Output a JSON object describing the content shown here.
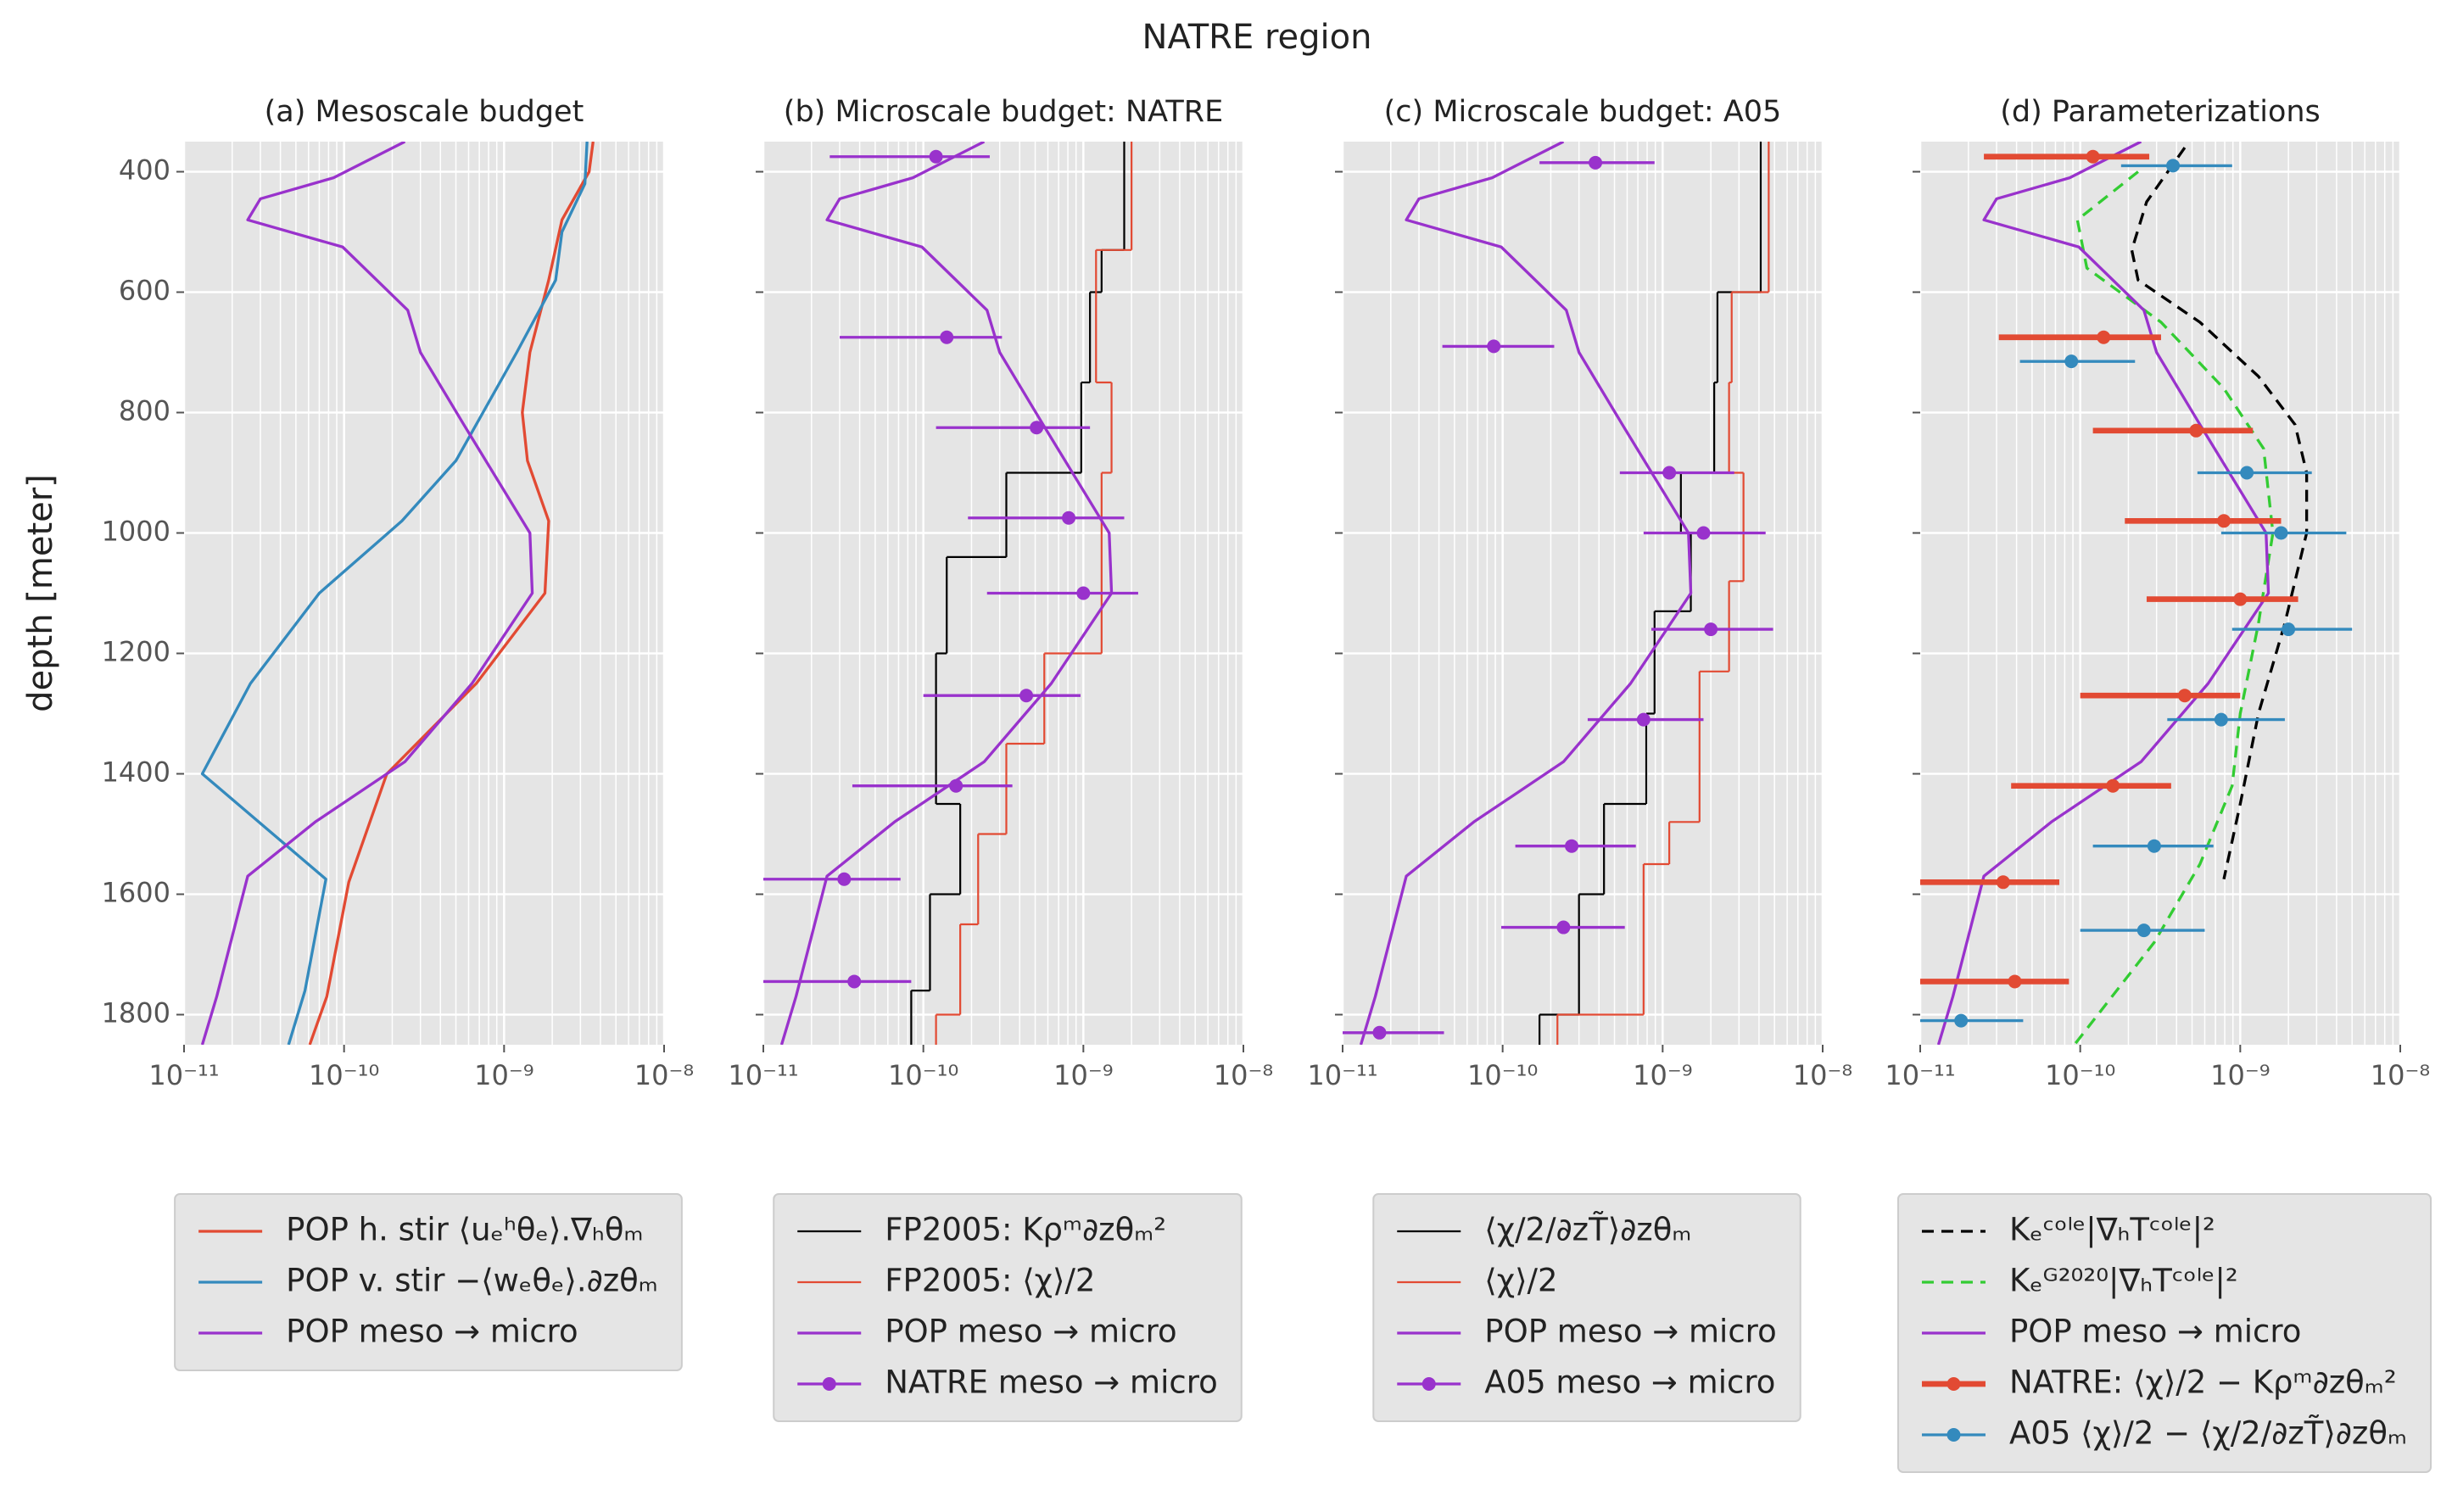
{
  "title": "NATRE region",
  "chart_data": [
    {
      "type": "line",
      "title": "(a) Mesoscale budget",
      "ylabel": "depth [meter]",
      "xscale": "log",
      "grid": true,
      "legend": "below",
      "ytick_labels": true,
      "xlim": [
        1e-11,
        1e-08
      ],
      "xticks": [
        {
          "value": 1e-11,
          "label": "10⁻¹¹"
        },
        {
          "value": 1e-10,
          "label": "10⁻¹⁰"
        },
        {
          "value": 1e-09,
          "label": "10⁻⁹"
        },
        {
          "value": 1e-08,
          "label": "10⁻⁸"
        }
      ],
      "ylim": [
        1850,
        350
      ],
      "yticks": [
        400,
        600,
        800,
        1000,
        1200,
        1400,
        1600,
        1800
      ],
      "series": [
        {
          "name": "POP h. stir ⟨uₑʰθₑ⟩.∇ₕθₘ",
          "color": "#E24A33",
          "style": "solid",
          "depth": [
            350,
            400,
            480,
            580,
            700,
            800,
            880,
            980,
            1100,
            1250,
            1400,
            1580,
            1770,
            1850
          ],
          "values": [
            3.6e-09,
            3.4e-09,
            2.3e-09,
            1.9e-09,
            1.45e-09,
            1.3e-09,
            1.4e-09,
            1.9e-09,
            1.8e-09,
            6.7e-10,
            1.85e-10,
            1.07e-10,
            7.8e-11,
            6.1e-11
          ]
        },
        {
          "name": "POP v. stir −⟨wₑθₑ⟩.∂zθₘ",
          "color": "#348ABD",
          "style": "solid",
          "depth": [
            350,
            420,
            500,
            580,
            700,
            880,
            980,
            1100,
            1250,
            1400,
            1575,
            1760,
            1850
          ],
          "values": [
            3.3e-09,
            3.2e-09,
            2.3e-09,
            2.1e-09,
            1.2e-09,
            5e-10,
            2.3e-10,
            7e-11,
            2.6e-11,
            1.3e-11,
            7.7e-11,
            5.7e-11,
            4.5e-11
          ]
        },
        {
          "name": "POP meso → micro",
          "color": "#9932CC",
          "style": "solid",
          "depth": [
            350,
            410,
            445,
            480,
            525,
            630,
            700,
            820,
            1000,
            1100,
            1250,
            1380,
            1480,
            1570,
            1770,
            1850
          ],
          "values": [
            2.4e-10,
            8.6e-11,
            3e-11,
            2.5e-11,
            9.8e-11,
            2.5e-10,
            3e-10,
            5.6e-10,
            1.45e-09,
            1.5e-09,
            6.3e-10,
            2.4e-10,
            6.6e-11,
            2.5e-11,
            1.6e-11,
            1.3e-11
          ]
        }
      ]
    },
    {
      "type": "line",
      "title": "(b) Microscale budget: NATRE",
      "xscale": "log",
      "grid": true,
      "legend": "below",
      "ytick_labels": false,
      "xlim": [
        1e-11,
        1e-08
      ],
      "xticks": [
        {
          "value": 1e-11,
          "label": "10⁻¹¹"
        },
        {
          "value": 1e-10,
          "label": "10⁻¹⁰"
        },
        {
          "value": 1e-09,
          "label": "10⁻⁹"
        },
        {
          "value": 1e-08,
          "label": "10⁻⁸"
        }
      ],
      "ylim": [
        1850,
        350
      ],
      "yticks": [
        400,
        600,
        800,
        1000,
        1200,
        1400,
        1600,
        1800
      ],
      "series": [
        {
          "name": "FP2005: Kρᵐ∂zθₘ²",
          "color": "#000000",
          "style": "step",
          "linewidth": 1,
          "depth": [
            350,
            530,
            600,
            750,
            900,
            1040,
            1200,
            1450,
            1600,
            1760,
            1850
          ],
          "values": [
            1.8e-09,
            1.3e-09,
            1.1e-09,
            9.7e-10,
            3.3e-10,
            1.4e-10,
            1.2e-10,
            1.7e-10,
            1.1e-10,
            8.4e-11
          ]
        },
        {
          "name": "FP2005: ⟨χ⟩/2",
          "color": "#E24A33",
          "style": "step",
          "linewidth": 1,
          "depth": [
            350,
            530,
            750,
            900,
            1200,
            1350,
            1500,
            1650,
            1800,
            1850
          ],
          "values": [
            2e-09,
            1.2e-09,
            1.5e-09,
            1.3e-09,
            5.7e-10,
            3.3e-10,
            2.2e-10,
            1.7e-10,
            1.2e-10
          ]
        },
        {
          "name": "POP meso → micro",
          "color": "#9932CC",
          "style": "solid",
          "depth": [
            350,
            410,
            445,
            480,
            525,
            630,
            700,
            820,
            1000,
            1100,
            1250,
            1380,
            1480,
            1570,
            1770,
            1850
          ],
          "values": [
            2.4e-10,
            8.6e-11,
            3e-11,
            2.5e-11,
            9.8e-11,
            2.5e-10,
            3e-10,
            5.6e-10,
            1.45e-09,
            1.5e-09,
            6.3e-10,
            2.4e-10,
            6.6e-11,
            2.5e-11,
            1.6e-11,
            1.3e-11
          ]
        },
        {
          "name": "NATRE meso → micro",
          "color": "#9932CC",
          "style": "errorbar",
          "depth": [
            375,
            675,
            825,
            975,
            1100,
            1270,
            1420,
            1575,
            1745
          ],
          "values": [
            1.2e-10,
            1.4e-10,
            5.1e-10,
            8.1e-10,
            1e-09,
            4.4e-10,
            1.6e-10,
            3.2e-11,
            3.7e-11
          ],
          "lower": [
            2.6e-11,
            3e-11,
            1.2e-10,
            1.9e-10,
            2.5e-10,
            1e-10,
            3.6e-11,
            1e-11,
            1e-11
          ],
          "upper": [
            2.6e-10,
            3.1e-10,
            1.1e-09,
            1.8e-09,
            2.2e-09,
            9.6e-10,
            3.6e-10,
            7.2e-11,
            8.4e-11
          ]
        }
      ]
    },
    {
      "type": "line",
      "title": "(c) Microscale budget: A05",
      "xscale": "log",
      "grid": true,
      "legend": "below",
      "ytick_labels": false,
      "xlim": [
        1e-11,
        1e-08
      ],
      "xticks": [
        {
          "value": 1e-11,
          "label": "10⁻¹¹"
        },
        {
          "value": 1e-10,
          "label": "10⁻¹⁰"
        },
        {
          "value": 1e-09,
          "label": "10⁻⁹"
        },
        {
          "value": 1e-08,
          "label": "10⁻⁸"
        }
      ],
      "ylim": [
        1850,
        350
      ],
      "yticks": [
        400,
        600,
        800,
        1000,
        1200,
        1400,
        1600,
        1800
      ],
      "series": [
        {
          "name": "⟨χ/2/∂zT̃⟩∂zθₘ",
          "color": "#000000",
          "style": "step",
          "linewidth": 1,
          "depth": [
            350,
            600,
            750,
            900,
            1000,
            1130,
            1300,
            1450,
            1600,
            1800,
            1850
          ],
          "values": [
            4.1e-09,
            2.2e-09,
            2.1e-09,
            1.3e-09,
            1.5e-09,
            8.9e-10,
            7.9e-10,
            4.3e-10,
            3e-10,
            1.7e-10
          ]
        },
        {
          "name": "⟨χ⟩/2",
          "color": "#E24A33",
          "style": "step",
          "linewidth": 1,
          "depth": [
            350,
            600,
            750,
            900,
            1080,
            1230,
            1480,
            1550,
            1800,
            1850
          ],
          "values": [
            4.6e-09,
            2.7e-09,
            2.6e-09,
            3.2e-09,
            2.6e-09,
            1.7e-09,
            1.1e-09,
            7.6e-10,
            2.2e-10
          ]
        },
        {
          "name": "POP meso → micro",
          "color": "#9932CC",
          "style": "solid",
          "depth": [
            350,
            410,
            445,
            480,
            525,
            630,
            700,
            820,
            1000,
            1100,
            1250,
            1380,
            1480,
            1570,
            1770,
            1850
          ],
          "values": [
            2.4e-10,
            8.6e-11,
            3e-11,
            2.5e-11,
            9.8e-11,
            2.5e-10,
            3e-10,
            5.6e-10,
            1.45e-09,
            1.5e-09,
            6.3e-10,
            2.4e-10,
            6.6e-11,
            2.5e-11,
            1.6e-11,
            1.3e-11
          ]
        },
        {
          "name": "A05 meso → micro",
          "color": "#9932CC",
          "style": "errorbar",
          "depth": [
            385,
            690,
            900,
            1000,
            1160,
            1310,
            1520,
            1655,
            1830
          ],
          "values": [
            3.8e-10,
            8.8e-11,
            1.1e-09,
            1.8e-09,
            2e-09,
            7.6e-10,
            2.7e-10,
            2.4e-10,
            1.7e-11
          ],
          "lower": [
            1.7e-10,
            4.2e-11,
            5.4e-10,
            7.6e-10,
            8.5e-10,
            3.4e-10,
            1.2e-10,
            9.8e-11,
            1e-11
          ],
          "upper": [
            8.9e-10,
            2.1e-10,
            2.8e-09,
            4.4e-09,
            4.9e-09,
            1.8e-09,
            6.8e-10,
            5.8e-10,
            4.3e-11
          ]
        }
      ]
    },
    {
      "type": "line",
      "title": "(d) Parameterizations",
      "xscale": "log",
      "grid": true,
      "legend": "below",
      "ytick_labels": false,
      "xlim": [
        1e-11,
        1e-08
      ],
      "xticks": [
        {
          "value": 1e-11,
          "label": "10⁻¹¹"
        },
        {
          "value": 1e-10,
          "label": "10⁻¹⁰"
        },
        {
          "value": 1e-09,
          "label": "10⁻⁹"
        },
        {
          "value": 1e-08,
          "label": "10⁻⁸"
        }
      ],
      "ylim": [
        1850,
        350
      ],
      "yticks": [
        400,
        600,
        800,
        1000,
        1200,
        1400,
        1600,
        1800
      ],
      "series": [
        {
          "name": "Kₑᶜᵒˡᵉ|∇ₕTᶜᵒˡᵉ|²",
          "color": "#000000",
          "style": "dashed",
          "depth": [
            360,
            450,
            530,
            580,
            650,
            740,
            820,
            900,
            1000,
            1150,
            1300,
            1450,
            1575
          ],
          "values": [
            4.5e-10,
            2.6e-10,
            2.1e-10,
            2.3e-10,
            5.6e-10,
            1.3e-09,
            2.2e-09,
            2.6e-09,
            2.6e-09,
            1.9e-09,
            1.3e-09,
            1e-09,
            7.9e-10
          ]
        },
        {
          "name": "Kₑᴳ²⁰²⁰|∇ₕTᶜᵒˡᵉ|²",
          "color": "#33CC33",
          "style": "dashed",
          "depth": [
            400,
            480,
            560,
            650,
            760,
            860,
            1000,
            1150,
            1300,
            1420,
            1550,
            1680,
            1850
          ],
          "values": [
            2.3e-10,
            9.6e-11,
            1.1e-10,
            3.2e-10,
            7.9e-10,
            1.4e-09,
            1.6e-09,
            1.3e-09,
            1e-09,
            8.9e-10,
            5.6e-10,
            2.9e-10,
            9.2e-11
          ]
        },
        {
          "name": "POP meso → micro",
          "color": "#9932CC",
          "style": "solid",
          "depth": [
            350,
            410,
            445,
            480,
            525,
            630,
            700,
            820,
            1000,
            1100,
            1250,
            1380,
            1480,
            1570,
            1770,
            1850
          ],
          "values": [
            2.4e-10,
            8.6e-11,
            3e-11,
            2.5e-11,
            9.8e-11,
            2.5e-10,
            3e-10,
            5.6e-10,
            1.45e-09,
            1.5e-09,
            6.3e-10,
            2.4e-10,
            6.6e-11,
            2.5e-11,
            1.6e-11,
            1.3e-11
          ]
        },
        {
          "name": "NATRE: ⟨χ⟩/2 − Kρᵐ∂zθₘ²",
          "color": "#E24A33",
          "style": "errorbar",
          "linewidth": 3,
          "depth": [
            375,
            675,
            830,
            980,
            1110,
            1270,
            1420,
            1580,
            1745
          ],
          "values": [
            1.2e-10,
            1.4e-10,
            5.3e-10,
            7.9e-10,
            1e-09,
            4.5e-10,
            1.6e-10,
            3.3e-11,
            3.9e-11
          ],
          "lower": [
            2.5e-11,
            3.1e-11,
            1.2e-10,
            1.9e-10,
            2.6e-10,
            1e-10,
            3.7e-11,
            1e-11,
            1e-11
          ],
          "upper": [
            2.7e-10,
            3.2e-10,
            1.2e-09,
            1.8e-09,
            2.3e-09,
            1e-09,
            3.7e-10,
            7.4e-11,
            8.5e-11
          ]
        },
        {
          "name": "A05 ⟨χ⟩/2 − ⟨χ/2/∂zT̃⟩∂zθₘ",
          "color": "#348ABD",
          "style": "errorbar",
          "depth": [
            390,
            715,
            900,
            1000,
            1160,
            1310,
            1520,
            1660,
            1810
          ],
          "values": [
            3.8e-10,
            8.8e-11,
            1.1e-09,
            1.8e-09,
            2e-09,
            7.6e-10,
            2.9e-10,
            2.5e-10,
            1.8e-11
          ],
          "lower": [
            1.8e-10,
            4.2e-11,
            5.4e-10,
            7.6e-10,
            8.9e-10,
            3.5e-10,
            1.2e-10,
            1e-10,
            1e-11
          ],
          "upper": [
            8.9e-10,
            2.2e-10,
            2.8e-09,
            4.6e-09,
            5e-09,
            1.9e-09,
            6.8e-10,
            6e-10,
            4.4e-11
          ]
        }
      ]
    }
  ]
}
